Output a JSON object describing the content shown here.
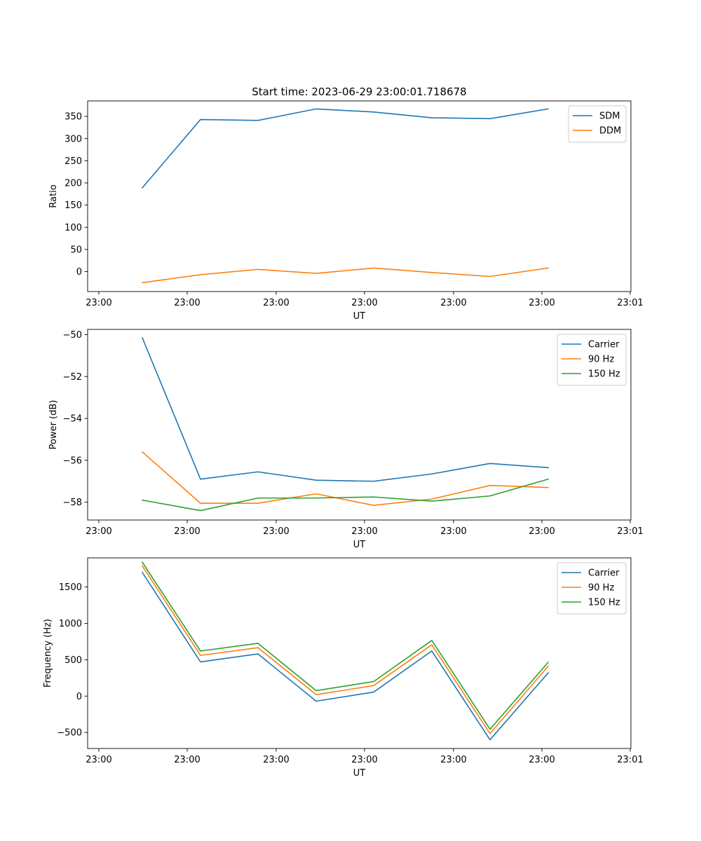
{
  "chart_data": [
    {
      "type": "line",
      "title": "Start time: 2023-06-29 23:00:01.718678",
      "xlabel": "UT",
      "ylabel": "Ratio",
      "x_tick_labels": [
        "23:00",
        "23:00",
        "23:00",
        "23:00",
        "23:00",
        "23:00",
        "23:01"
      ],
      "y_ticks": [
        0,
        50,
        100,
        150,
        200,
        250,
        300,
        350
      ],
      "ylim": [
        -45,
        385
      ],
      "legend_position": "top-right",
      "grid": false,
      "series": [
        {
          "name": "SDM",
          "color": "#1f77b4",
          "values": [
            189,
            343,
            341,
            367,
            360,
            347,
            345,
            367
          ]
        },
        {
          "name": "DDM",
          "color": "#ff7f0e",
          "values": [
            -25,
            -7,
            5,
            -4,
            8,
            -2,
            -11,
            8
          ]
        }
      ]
    },
    {
      "type": "line",
      "title": "",
      "xlabel": "UT",
      "ylabel": "Power (dB)",
      "x_tick_labels": [
        "23:00",
        "23:00",
        "23:00",
        "23:00",
        "23:00",
        "23:00",
        "23:01"
      ],
      "y_ticks": [
        -58,
        -56,
        -54,
        -52,
        -50
      ],
      "y_tick_labels": [
        "−58",
        "−56",
        "−54",
        "−52",
        "−50"
      ],
      "ylim": [
        -58.85,
        -49.75
      ],
      "legend_position": "top-right",
      "grid": false,
      "series": [
        {
          "name": "Carrier",
          "color": "#1f77b4",
          "values": [
            -50.15,
            -56.9,
            -56.55,
            -56.95,
            -57.0,
            -56.65,
            -56.15,
            -56.35
          ]
        },
        {
          "name": "90 Hz",
          "color": "#ff7f0e",
          "values": [
            -55.6,
            -58.05,
            -58.05,
            -57.6,
            -58.15,
            -57.85,
            -57.2,
            -57.3
          ]
        },
        {
          "name": "150 Hz",
          "color": "#2ca02c",
          "values": [
            -57.9,
            -58.4,
            -57.8,
            -57.8,
            -57.75,
            -57.95,
            -57.7,
            -56.9
          ]
        }
      ]
    },
    {
      "type": "line",
      "title": "",
      "xlabel": "UT",
      "ylabel": "Frequency (Hz)",
      "x_tick_labels": [
        "23:00",
        "23:00",
        "23:00",
        "23:00",
        "23:00",
        "23:00",
        "23:01"
      ],
      "y_ticks": [
        -500,
        0,
        500,
        1000,
        1500
      ],
      "y_tick_labels": [
        "−500",
        "0",
        "500",
        "1000",
        "1500"
      ],
      "ylim": [
        -720,
        1900
      ],
      "legend_position": "top-right",
      "grid": false,
      "series": [
        {
          "name": "Carrier",
          "color": "#1f77b4",
          "values": [
            1700,
            470,
            580,
            -70,
            55,
            620,
            -600,
            320
          ]
        },
        {
          "name": "90 Hz",
          "color": "#ff7f0e",
          "values": [
            1790,
            560,
            665,
            20,
            145,
            705,
            -515,
            410
          ]
        },
        {
          "name": "150 Hz",
          "color": "#2ca02c",
          "values": [
            1840,
            620,
            725,
            75,
            200,
            765,
            -455,
            465
          ]
        }
      ]
    }
  ]
}
